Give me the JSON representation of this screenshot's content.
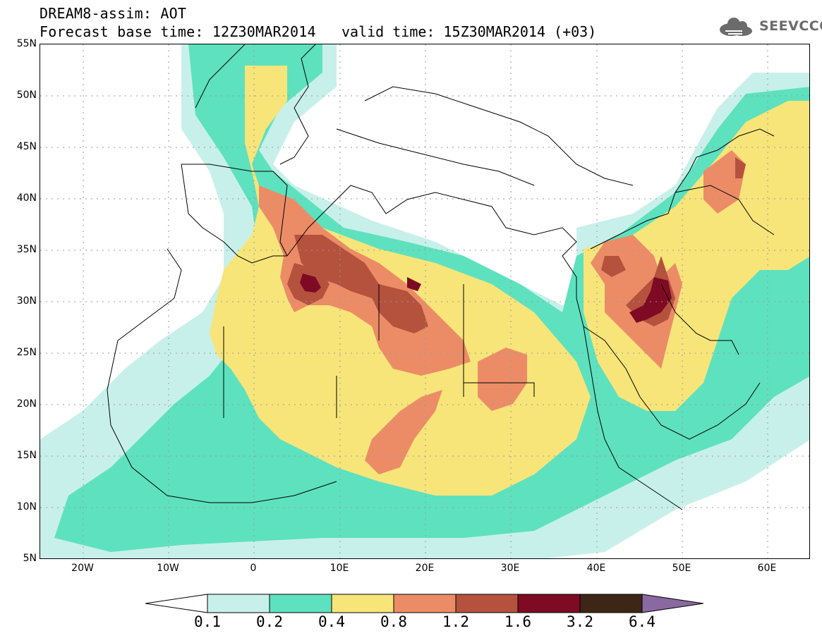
{
  "header": {
    "line1": "DREAM8-assim: AOT",
    "line2": "Forecast base time: 12Z30MAR2014",
    "valid": "valid time: 15Z30MAR2014 (+03)"
  },
  "logo": {
    "text": "SEEVCCC",
    "icon": "cloud-icon"
  },
  "map": {
    "lat_labels": [
      "55N",
      "50N",
      "45N",
      "40N",
      "35N",
      "30N",
      "25N",
      "20N",
      "15N",
      "10N",
      "5N"
    ],
    "lon_labels": [
      "20W",
      "10W",
      "0",
      "10E",
      "20E",
      "30E",
      "40E",
      "50E",
      "60E"
    ],
    "lat_range": [
      5,
      55
    ],
    "lon_range": [
      -25,
      65
    ]
  },
  "colorbar": {
    "labels": [
      "0.1",
      "0.2",
      "0.4",
      "0.8",
      "1.2",
      "1.6",
      "3.2",
      "6.4"
    ],
    "colors": [
      "#c8f0ea",
      "#5ee1be",
      "#f7e57a",
      "#ec8c66",
      "#b4523d",
      "#7f0a24",
      "#3e2617",
      "#8a69a0"
    ]
  }
}
